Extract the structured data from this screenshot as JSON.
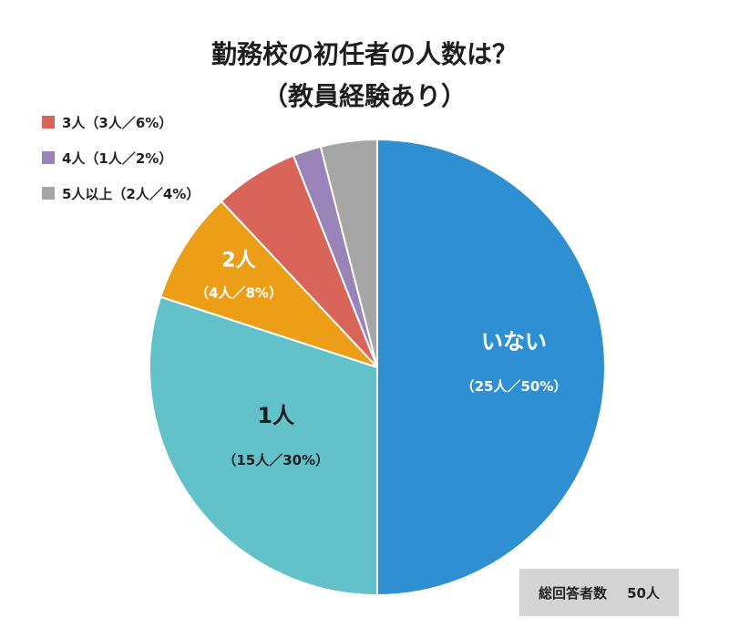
{
  "title_line1": "勤務校の初任者の人数は？",
  "title_line2": "（教員経験あり）",
  "total": {
    "label": "総回答者数",
    "value": "50人"
  },
  "chart_data": {
    "type": "pie",
    "title": "勤務校の初任者の人数は？（教員経験あり）",
    "start_angle_deg": 0,
    "direction": "clockwise",
    "slices": [
      {
        "category": "いない",
        "count": 25,
        "percent": 50,
        "label_detail": "（25人／50%）",
        "color": "#2e8fd2",
        "label_inside": true
      },
      {
        "category": "1人",
        "count": 15,
        "percent": 30,
        "label_detail": "（15人／30%）",
        "color": "#62c1c9",
        "label_inside": true
      },
      {
        "category": "2人",
        "count": 4,
        "percent": 8,
        "label_detail": "（4人／8%）",
        "color": "#ec9e17",
        "label_inside": true
      },
      {
        "category": "3人",
        "count": 3,
        "percent": 6,
        "label_detail": "（3人／6%）",
        "color": "#d9655a",
        "label_inside": false
      },
      {
        "category": "4人",
        "count": 1,
        "percent": 2,
        "label_detail": "（1人／2%）",
        "color": "#9a83b8",
        "label_inside": false
      },
      {
        "category": "5人以上",
        "count": 2,
        "percent": 4,
        "label_detail": "（2人／4%）",
        "color": "#a6a6a6",
        "label_inside": false
      }
    ]
  },
  "legend": [
    {
      "text": "3人（3人／6%）",
      "color": "#d9655a"
    },
    {
      "text": "4人（1人／2%）",
      "color": "#9a83b8"
    },
    {
      "text": "5人以上（2人／4%）",
      "color": "#a6a6a6"
    }
  ]
}
